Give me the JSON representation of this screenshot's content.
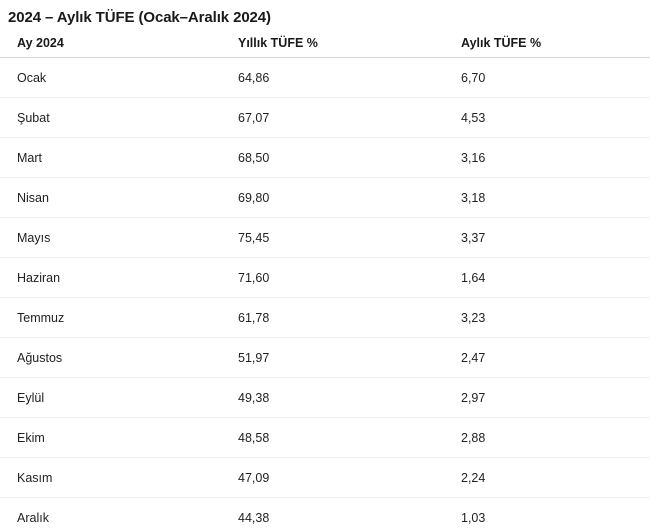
{
  "title": "2024 – Aylık TÜFE (Ocak–Aralık 2024)",
  "table": {
    "headers": {
      "month": "Ay 2024",
      "yearly": "Yıllık TÜFE %",
      "monthly": "Aylık TÜFE %"
    }
  },
  "rows": [
    {
      "month": "Ocak",
      "yearly": "64,86",
      "monthly": "6,70"
    },
    {
      "month": "Şubat",
      "yearly": "67,07",
      "monthly": "4,53"
    },
    {
      "month": "Mart",
      "yearly": "68,50",
      "monthly": "3,16"
    },
    {
      "month": "Nisan",
      "yearly": "69,80",
      "monthly": "3,18"
    },
    {
      "month": "Mayıs",
      "yearly": "75,45",
      "monthly": "3,37"
    },
    {
      "month": "Haziran",
      "yearly": "71,60",
      "monthly": "1,64"
    },
    {
      "month": "Temmuz",
      "yearly": "61,78",
      "monthly": "3,23"
    },
    {
      "month": "Ağustos",
      "yearly": "51,97",
      "monthly": "2,47"
    },
    {
      "month": "Eylül",
      "yearly": "49,38",
      "monthly": "2,97"
    },
    {
      "month": "Ekim",
      "yearly": "48,58",
      "monthly": "2,88"
    },
    {
      "month": "Kasım",
      "yearly": "47,09",
      "monthly": "2,24"
    },
    {
      "month": "Aralık",
      "yearly": "44,38",
      "monthly": "1,03"
    }
  ],
  "colors": {
    "text": "#222222",
    "heading_text": "#1a1a1a",
    "header_border": "#d6d6d6",
    "row_border": "#f0f0f0",
    "background": "#ffffff"
  },
  "chart_data": {
    "type": "table",
    "title": "2024 – Aylık TÜFE (Ocak–Aralık 2024)",
    "columns": [
      "Ay 2024",
      "Yıllık TÜFE %",
      "Aylık TÜFE %"
    ],
    "categories": [
      "Ocak",
      "Şubat",
      "Mart",
      "Nisan",
      "Mayıs",
      "Haziran",
      "Temmuz",
      "Ağustos",
      "Eylül",
      "Ekim",
      "Kasım",
      "Aralık"
    ],
    "series": [
      {
        "name": "Yıllık TÜFE %",
        "values": [
          64.86,
          67.07,
          68.5,
          69.8,
          75.45,
          71.6,
          61.78,
          51.97,
          49.38,
          48.58,
          47.09,
          44.38
        ]
      },
      {
        "name": "Aylık TÜFE %",
        "values": [
          6.7,
          4.53,
          3.16,
          3.18,
          3.37,
          1.64,
          3.23,
          2.47,
          2.97,
          2.88,
          2.24,
          1.03
        ]
      }
    ]
  }
}
